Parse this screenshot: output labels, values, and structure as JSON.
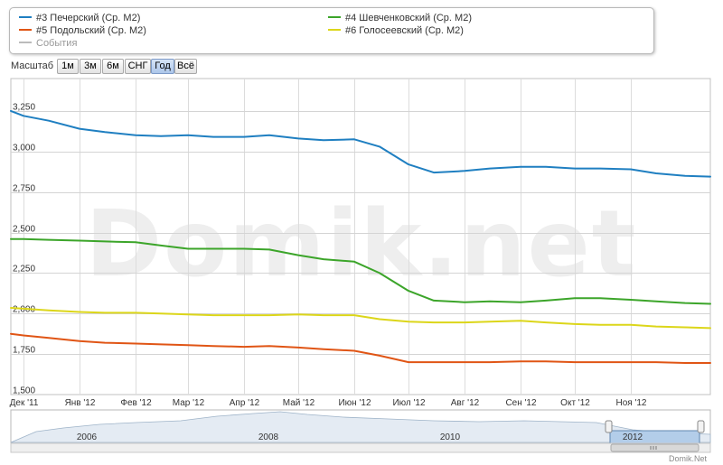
{
  "legend": {
    "items": [
      {
        "label": "#3 Печерский (Ср. М2)",
        "color": "#1f7fc1"
      },
      {
        "label": "#4 Шевченковский (Ср. М2)",
        "color": "#3ca52a"
      },
      {
        "label": "#5 Подольский (Ср. М2)",
        "color": "#e05515"
      },
      {
        "label": "#6 Голосеевский (Ср. М2)",
        "color": "#dcd61a"
      },
      {
        "label": "События",
        "color": "#bbbbbb"
      }
    ]
  },
  "zoom": {
    "label": "Масштаб",
    "buttons": [
      "1м",
      "3м",
      "6м",
      "СНГ",
      "Год",
      "Всё"
    ],
    "active": "Год"
  },
  "watermark": "Domik.net",
  "credit": "Domik.Net",
  "navigator": {
    "years": [
      "2006",
      "2008",
      "2010",
      "2012"
    ],
    "selected_year": "2012"
  },
  "chart_data": {
    "type": "line",
    "title": "",
    "xlabel": "",
    "ylabel": "",
    "ylim": [
      1500,
      3450
    ],
    "yticks": [
      "3,250",
      "3,000",
      "2,750",
      "2,500",
      "2,250",
      "2,000",
      "1,750",
      "1,500"
    ],
    "ytick_values": [
      3250,
      3000,
      2750,
      2500,
      2250,
      2000,
      1750,
      1500
    ],
    "xlim": [
      "2011-11-24",
      "2012-12-15"
    ],
    "xticks": [
      "Дек '11",
      "Янв '12",
      "Фев '12",
      "Мар '12",
      "Апр '12",
      "Май '12",
      "Июн '12",
      "Июл '12",
      "Авг '12",
      "Сен '12",
      "Окт '12",
      "Ноя '12"
    ],
    "xtick_dates": [
      "2011-12-01",
      "2012-01-01",
      "2012-02-01",
      "2012-03-01",
      "2012-04-01",
      "2012-05-01",
      "2012-06-01",
      "2012-07-01",
      "2012-08-01",
      "2012-09-01",
      "2012-10-01",
      "2012-11-01"
    ],
    "grid": true,
    "legend_position": "top",
    "series": [
      {
        "name": "#3 Печерский (Ср. М2)",
        "color": "#1f7fc1",
        "points": [
          [
            "2011-11-24",
            3250
          ],
          [
            "2011-12-01",
            3220
          ],
          [
            "2011-12-15",
            3190
          ],
          [
            "2012-01-01",
            3140
          ],
          [
            "2012-01-15",
            3120
          ],
          [
            "2012-02-01",
            3100
          ],
          [
            "2012-02-15",
            3095
          ],
          [
            "2012-03-01",
            3100
          ],
          [
            "2012-03-15",
            3090
          ],
          [
            "2012-04-01",
            3090
          ],
          [
            "2012-04-15",
            3100
          ],
          [
            "2012-05-01",
            3080
          ],
          [
            "2012-05-15",
            3070
          ],
          [
            "2012-06-01",
            3075
          ],
          [
            "2012-06-15",
            3030
          ],
          [
            "2012-07-01",
            2920
          ],
          [
            "2012-07-15",
            2870
          ],
          [
            "2012-08-01",
            2880
          ],
          [
            "2012-08-15",
            2895
          ],
          [
            "2012-09-01",
            2905
          ],
          [
            "2012-09-15",
            2905
          ],
          [
            "2012-10-01",
            2895
          ],
          [
            "2012-10-15",
            2895
          ],
          [
            "2012-11-01",
            2890
          ],
          [
            "2012-11-15",
            2865
          ],
          [
            "2012-12-01",
            2850
          ],
          [
            "2012-12-15",
            2845
          ]
        ]
      },
      {
        "name": "#4 Шевченковский (Ср. М2)",
        "color": "#3ca52a",
        "points": [
          [
            "2011-11-24",
            2460
          ],
          [
            "2011-12-01",
            2460
          ],
          [
            "2011-12-15",
            2455
          ],
          [
            "2012-01-01",
            2450
          ],
          [
            "2012-01-15",
            2445
          ],
          [
            "2012-02-01",
            2440
          ],
          [
            "2012-02-15",
            2420
          ],
          [
            "2012-03-01",
            2400
          ],
          [
            "2012-03-15",
            2400
          ],
          [
            "2012-04-01",
            2400
          ],
          [
            "2012-04-15",
            2395
          ],
          [
            "2012-05-01",
            2360
          ],
          [
            "2012-05-15",
            2335
          ],
          [
            "2012-06-01",
            2320
          ],
          [
            "2012-06-15",
            2250
          ],
          [
            "2012-07-01",
            2140
          ],
          [
            "2012-07-15",
            2080
          ],
          [
            "2012-08-01",
            2070
          ],
          [
            "2012-08-15",
            2075
          ],
          [
            "2012-09-01",
            2070
          ],
          [
            "2012-09-15",
            2080
          ],
          [
            "2012-10-01",
            2095
          ],
          [
            "2012-10-15",
            2095
          ],
          [
            "2012-11-01",
            2085
          ],
          [
            "2012-11-15",
            2075
          ],
          [
            "2012-12-01",
            2065
          ],
          [
            "2012-12-15",
            2060
          ]
        ]
      },
      {
        "name": "#5 Подольский (Ср. М2)",
        "color": "#e05515",
        "points": [
          [
            "2011-11-24",
            1875
          ],
          [
            "2011-12-01",
            1865
          ],
          [
            "2011-12-15",
            1850
          ],
          [
            "2012-01-01",
            1830
          ],
          [
            "2012-01-15",
            1820
          ],
          [
            "2012-02-01",
            1815
          ],
          [
            "2012-02-15",
            1810
          ],
          [
            "2012-03-01",
            1805
          ],
          [
            "2012-03-15",
            1800
          ],
          [
            "2012-04-01",
            1795
          ],
          [
            "2012-04-15",
            1800
          ],
          [
            "2012-05-01",
            1790
          ],
          [
            "2012-05-15",
            1780
          ],
          [
            "2012-06-01",
            1770
          ],
          [
            "2012-06-15",
            1740
          ],
          [
            "2012-07-01",
            1700
          ],
          [
            "2012-07-15",
            1700
          ],
          [
            "2012-08-01",
            1700
          ],
          [
            "2012-08-15",
            1700
          ],
          [
            "2012-09-01",
            1705
          ],
          [
            "2012-09-15",
            1705
          ],
          [
            "2012-10-01",
            1700
          ],
          [
            "2012-10-15",
            1700
          ],
          [
            "2012-11-01",
            1700
          ],
          [
            "2012-11-15",
            1700
          ],
          [
            "2012-12-01",
            1695
          ],
          [
            "2012-12-15",
            1695
          ]
        ]
      },
      {
        "name": "#6 Голосеевский (Ср. М2)",
        "color": "#dcd61a",
        "points": [
          [
            "2011-11-24",
            2035
          ],
          [
            "2011-12-01",
            2030
          ],
          [
            "2011-12-15",
            2020
          ],
          [
            "2012-01-01",
            2010
          ],
          [
            "2012-01-15",
            2005
          ],
          [
            "2012-02-01",
            2005
          ],
          [
            "2012-02-15",
            2000
          ],
          [
            "2012-03-01",
            1995
          ],
          [
            "2012-03-15",
            1990
          ],
          [
            "2012-04-01",
            1990
          ],
          [
            "2012-04-15",
            1990
          ],
          [
            "2012-05-01",
            1995
          ],
          [
            "2012-05-15",
            1990
          ],
          [
            "2012-06-01",
            1990
          ],
          [
            "2012-06-15",
            1965
          ],
          [
            "2012-07-01",
            1950
          ],
          [
            "2012-07-15",
            1945
          ],
          [
            "2012-08-01",
            1945
          ],
          [
            "2012-08-15",
            1950
          ],
          [
            "2012-09-01",
            1955
          ],
          [
            "2012-09-15",
            1945
          ],
          [
            "2012-10-01",
            1935
          ],
          [
            "2012-10-15",
            1930
          ],
          [
            "2012-11-01",
            1930
          ],
          [
            "2012-11-15",
            1920
          ],
          [
            "2012-12-01",
            1915
          ],
          [
            "2012-12-15",
            1910
          ]
        ]
      }
    ]
  }
}
